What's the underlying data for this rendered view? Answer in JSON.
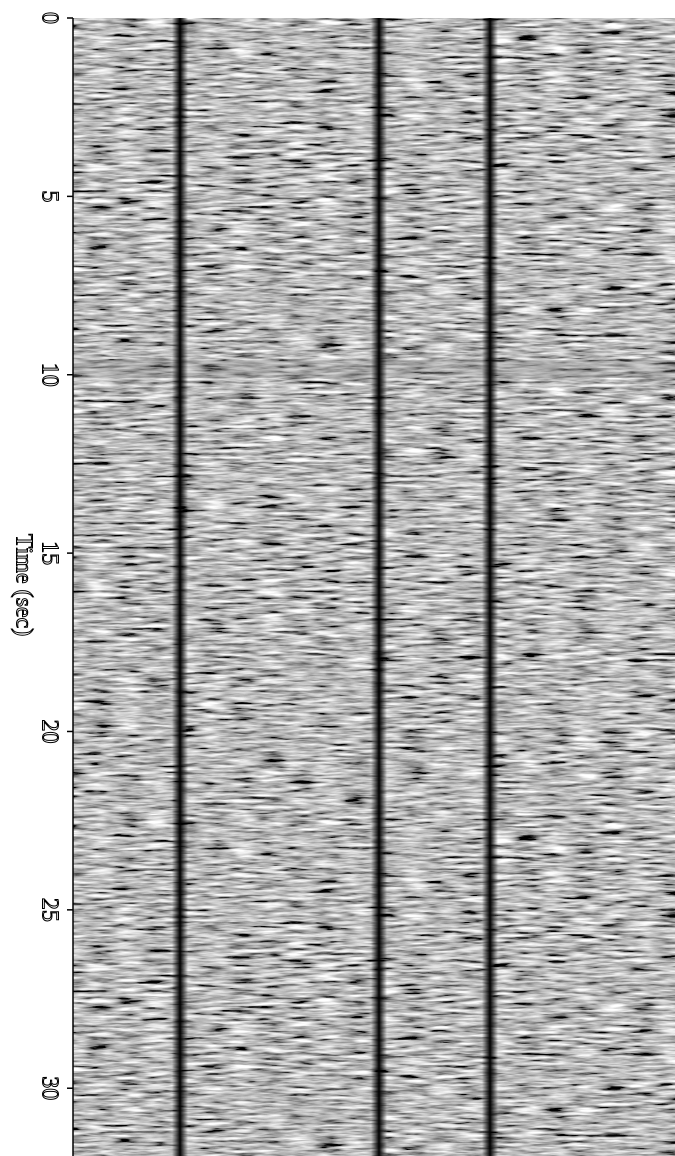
{
  "chart_data": {
    "type": "image",
    "y_label": "Time (sec)",
    "ylim": [
      0,
      31.9
    ],
    "yticks": [
      0,
      5,
      10,
      15,
      20,
      25,
      30
    ]
  }
}
